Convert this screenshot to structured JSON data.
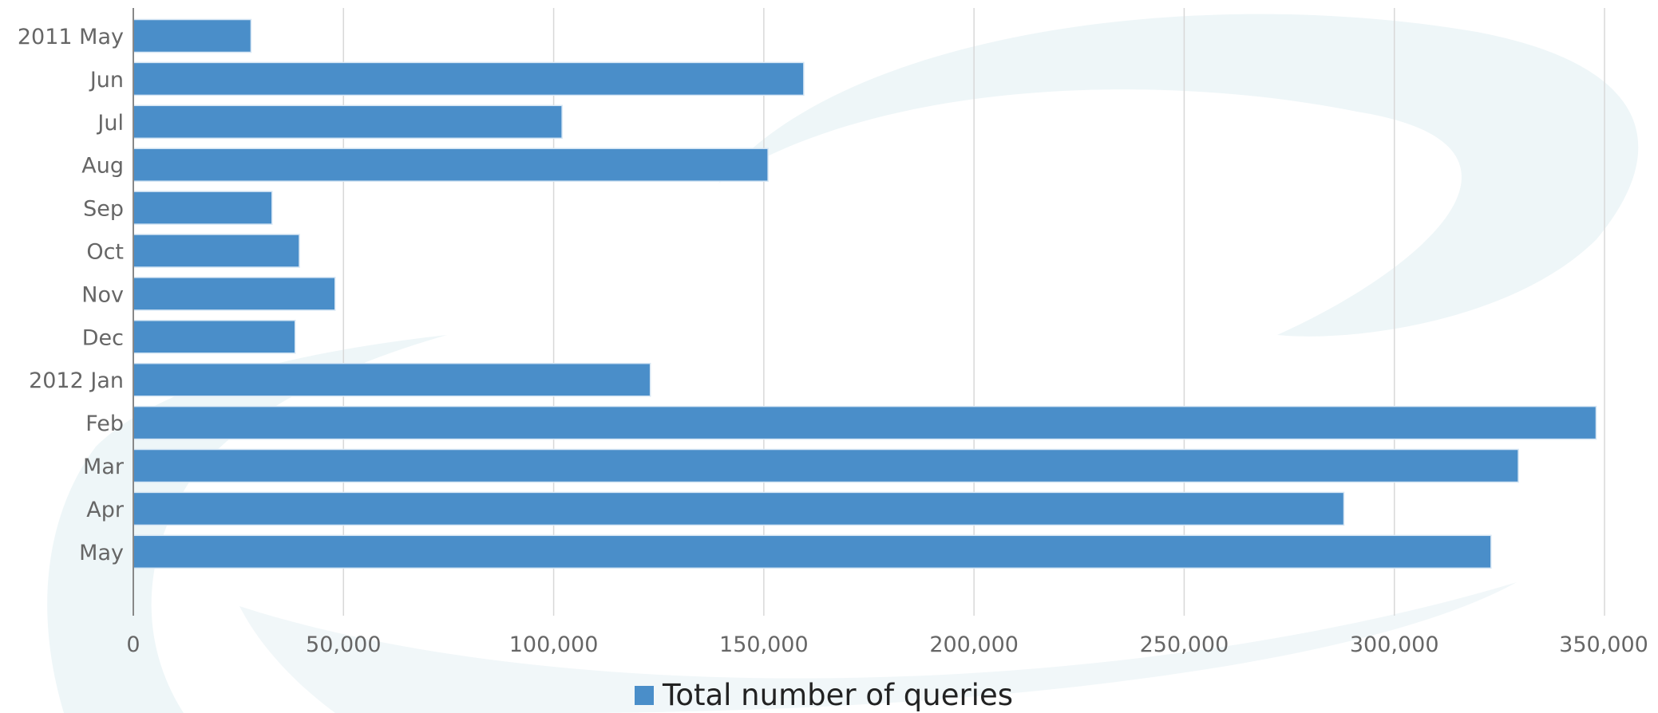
{
  "chart_data": {
    "type": "bar",
    "orientation": "horizontal",
    "categories": [
      "2011 May",
      "Jun",
      "Jul",
      "Aug",
      "Sep",
      "Oct",
      "Nov",
      "Dec",
      "2012 Jan",
      "Feb",
      "Mar",
      "Apr",
      "May"
    ],
    "series": [
      {
        "name": "Total number of queries",
        "color": "#4a8ec9",
        "values": [
          28000,
          159500,
          102000,
          151000,
          33000,
          39500,
          48000,
          38500,
          123000,
          348000,
          329500,
          288000,
          323000
        ]
      }
    ],
    "xticks": [
      "0",
      "50,000",
      "100,000",
      "150,000",
      "200,000",
      "250,000",
      "300,000",
      "350,000"
    ],
    "xlim": [
      0,
      350000
    ],
    "grid": "vertical",
    "legend": "bottom-center",
    "title": "",
    "xlabel": "",
    "ylabel": ""
  }
}
